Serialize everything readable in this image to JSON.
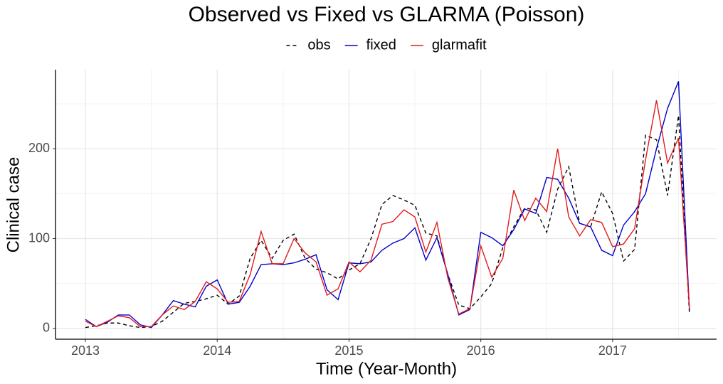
{
  "chart_data": {
    "type": "line",
    "title": "Observed vs Fixed vs GLARMA (Poisson)",
    "x_label": "Time (Year-Month)",
    "y_label": "Clinical case",
    "x": [
      2013,
      2013.083,
      2013.167,
      2013.25,
      2013.333,
      2013.417,
      2013.5,
      2013.583,
      2013.667,
      2013.75,
      2013.833,
      2013.917,
      2014,
      2014.083,
      2014.167,
      2014.25,
      2014.333,
      2014.417,
      2014.5,
      2014.583,
      2014.667,
      2014.75,
      2014.833,
      2014.917,
      2015,
      2015.083,
      2015.167,
      2015.25,
      2015.333,
      2015.417,
      2015.5,
      2015.583,
      2015.667,
      2015.75,
      2015.833,
      2015.917,
      2016,
      2016.083,
      2016.167,
      2016.25,
      2016.333,
      2016.417,
      2016.5,
      2016.583,
      2016.667,
      2016.75,
      2016.833,
      2016.917,
      2017,
      2017.083,
      2017.167,
      2017.25,
      2017.333,
      2017.417,
      2017.5,
      2017.583
    ],
    "series": [
      {
        "name": "obs",
        "color": "#000000",
        "linetype": "dashed",
        "values": [
          1,
          3,
          6,
          6,
          3,
          1,
          2,
          8,
          18,
          28,
          30,
          33,
          37,
          27,
          36,
          78,
          98,
          78,
          98,
          105,
          78,
          66,
          62,
          55,
          65,
          72,
          100,
          138,
          148,
          143,
          137,
          106,
          103,
          60,
          26,
          22,
          35,
          50,
          90,
          113,
          134,
          132,
          107,
          155,
          180,
          117,
          113,
          152,
          128,
          75,
          88,
          215,
          210,
          148,
          237,
          16
        ]
      },
      {
        "name": "fixed",
        "color": "#0000cc",
        "linetype": "solid",
        "values": [
          10,
          2,
          7,
          15,
          15,
          4,
          1,
          15,
          31,
          27,
          24,
          47,
          54,
          27,
          29,
          47,
          71,
          72,
          71,
          73,
          77,
          82,
          43,
          32,
          73,
          72,
          74,
          87,
          95,
          100,
          112,
          76,
          101,
          60,
          15,
          21,
          107,
          101,
          92,
          110,
          133,
          128,
          168,
          166,
          145,
          117,
          113,
          87,
          81,
          115,
          130,
          150,
          200,
          245,
          275,
          20
        ]
      },
      {
        "name": "glarmafit",
        "color": "#e31a1c",
        "linetype": "solid",
        "values": [
          8,
          2,
          8,
          14,
          12,
          2,
          2,
          15,
          25,
          21,
          30,
          52,
          44,
          29,
          30,
          60,
          108,
          72,
          72,
          100,
          84,
          74,
          37,
          44,
          74,
          63,
          76,
          116,
          119,
          132,
          124,
          85,
          118,
          56,
          16,
          22,
          92,
          57,
          78,
          154,
          120,
          145,
          130,
          200,
          124,
          103,
          121,
          118,
          91,
          94,
          111,
          188,
          254,
          184,
          212,
          22
        ]
      }
    ],
    "xlim": [
      2012.773,
      2017.789
    ],
    "xticks": [
      2013,
      2014,
      2015,
      2016,
      2017
    ],
    "ylim": [
      -12,
      288
    ],
    "yticks": [
      0,
      100,
      200
    ],
    "grid": true,
    "legend": "top"
  }
}
